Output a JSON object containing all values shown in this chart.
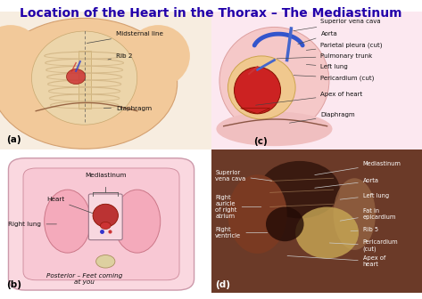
{
  "title": "Location of the Heart in the Thorax – The Mediastinum",
  "title_color": "#2200aa",
  "title_fontsize": 10,
  "bg_color": "#ffffff",
  "panel_a_label": "(a)",
  "panel_b_label": "(b)",
  "panel_c_label": "(c)",
  "panel_d_label": "(d)",
  "skin_color": "#f0d4b0",
  "skin_edge": "#d4a878",
  "rib_color": "#e8c898",
  "rib_edge": "#c4a060",
  "heart_red": "#cc2222",
  "heart_edge": "#881100",
  "lung_pink": "#f0b8b8",
  "lung_edge": "#cc8888",
  "annotation_fontsize": 5.2,
  "annotation_color": "#111111",
  "panel_label_fontsize": 7.5,
  "arrow_color": "#444444"
}
